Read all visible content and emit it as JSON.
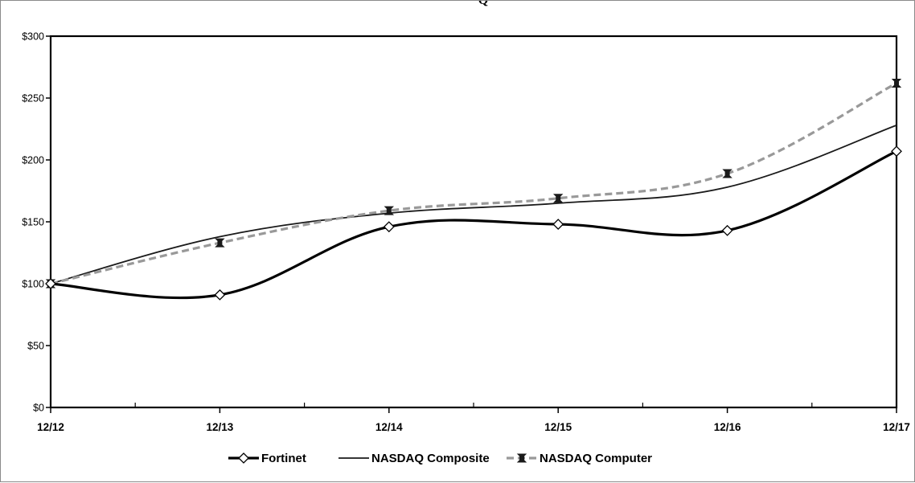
{
  "chart_data": {
    "type": "line",
    "title": "Q",
    "x": [
      "12/12",
      "12/13",
      "12/14",
      "12/15",
      "12/16",
      "12/17"
    ],
    "y_ticks": [
      "$0",
      "$50",
      "$100",
      "$150",
      "$200",
      "$250",
      "$300"
    ],
    "ylim": [
      0,
      300
    ],
    "grid": false,
    "legend_position": "bottom",
    "series": [
      {
        "name": "Fortinet",
        "values": [
          100,
          91,
          146,
          148,
          143,
          207
        ],
        "color": "#000000",
        "marker": "diamond-open",
        "line": "solid-thick"
      },
      {
        "name": "NASDAQ Composite",
        "values": [
          100,
          138,
          157,
          165,
          178,
          228
        ],
        "color": "#1a1a1a",
        "marker": "none",
        "line": "solid-thin"
      },
      {
        "name": "NASDAQ Computer",
        "values": [
          100,
          133,
          159,
          169,
          189,
          262
        ],
        "color": "#999999",
        "marker": "bowtie-filled",
        "line": "dashed"
      }
    ]
  }
}
